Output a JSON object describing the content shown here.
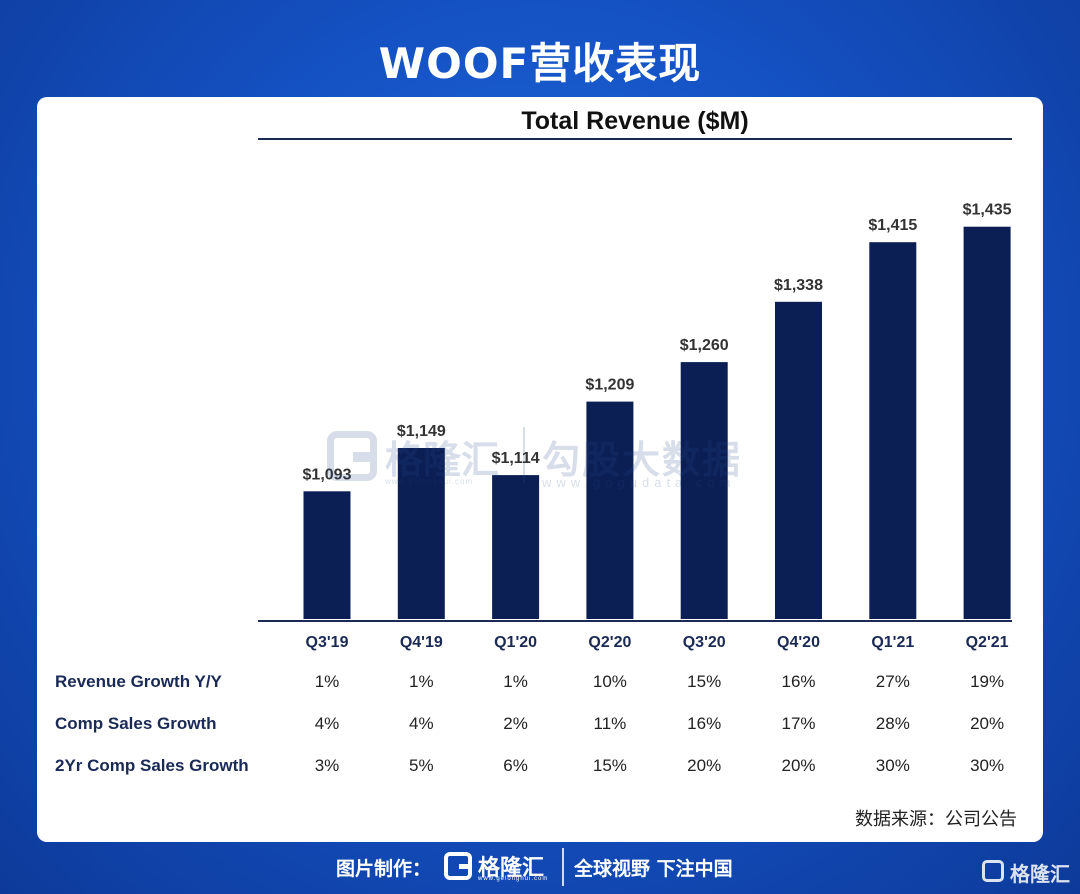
{
  "header": {
    "title": "WOOF营收表现"
  },
  "chart_data": {
    "type": "bar",
    "title": "Total Revenue ($M)",
    "categories": [
      "Q3'19",
      "Q4'19",
      "Q1'20",
      "Q2'20",
      "Q3'20",
      "Q4'20",
      "Q1'21",
      "Q2'21"
    ],
    "values": [
      1093,
      1149,
      1114,
      1209,
      1260,
      1338,
      1415,
      1435
    ],
    "value_labels": [
      "$1,093",
      "$1,149",
      "$1,114",
      "$1,209",
      "$1,260",
      "$1,338",
      "$1,415",
      "$1,435"
    ],
    "xlabel": "",
    "ylabel": "",
    "ylim": [
      928,
      1470
    ],
    "bar_color": "#0b1f54",
    "grid": false
  },
  "metrics": [
    {
      "label": "Revenue Growth Y/Y",
      "values": [
        "1%",
        "1%",
        "1%",
        "10%",
        "15%",
        "16%",
        "27%",
        "19%"
      ]
    },
    {
      "label": "Comp Sales Growth",
      "values": [
        "4%",
        "4%",
        "2%",
        "11%",
        "16%",
        "17%",
        "28%",
        "20%"
      ]
    },
    {
      "label": "2Yr Comp Sales Growth",
      "values": [
        "3%",
        "5%",
        "6%",
        "15%",
        "20%",
        "20%",
        "30%",
        "30%"
      ]
    }
  ],
  "watermark": {
    "brand": "格隆汇",
    "brand_url": "www.gelonghui.com",
    "partner": "勾股大数据",
    "partner_url": "www.gogudata.com"
  },
  "source_note": "数据来源：公司公告",
  "footer": {
    "credit": "图片制作：",
    "brand": "格隆汇",
    "brand_url": "www.gelonghui.com",
    "slogan": "全球视野 下注中国",
    "corner_brand": "格隆汇"
  }
}
